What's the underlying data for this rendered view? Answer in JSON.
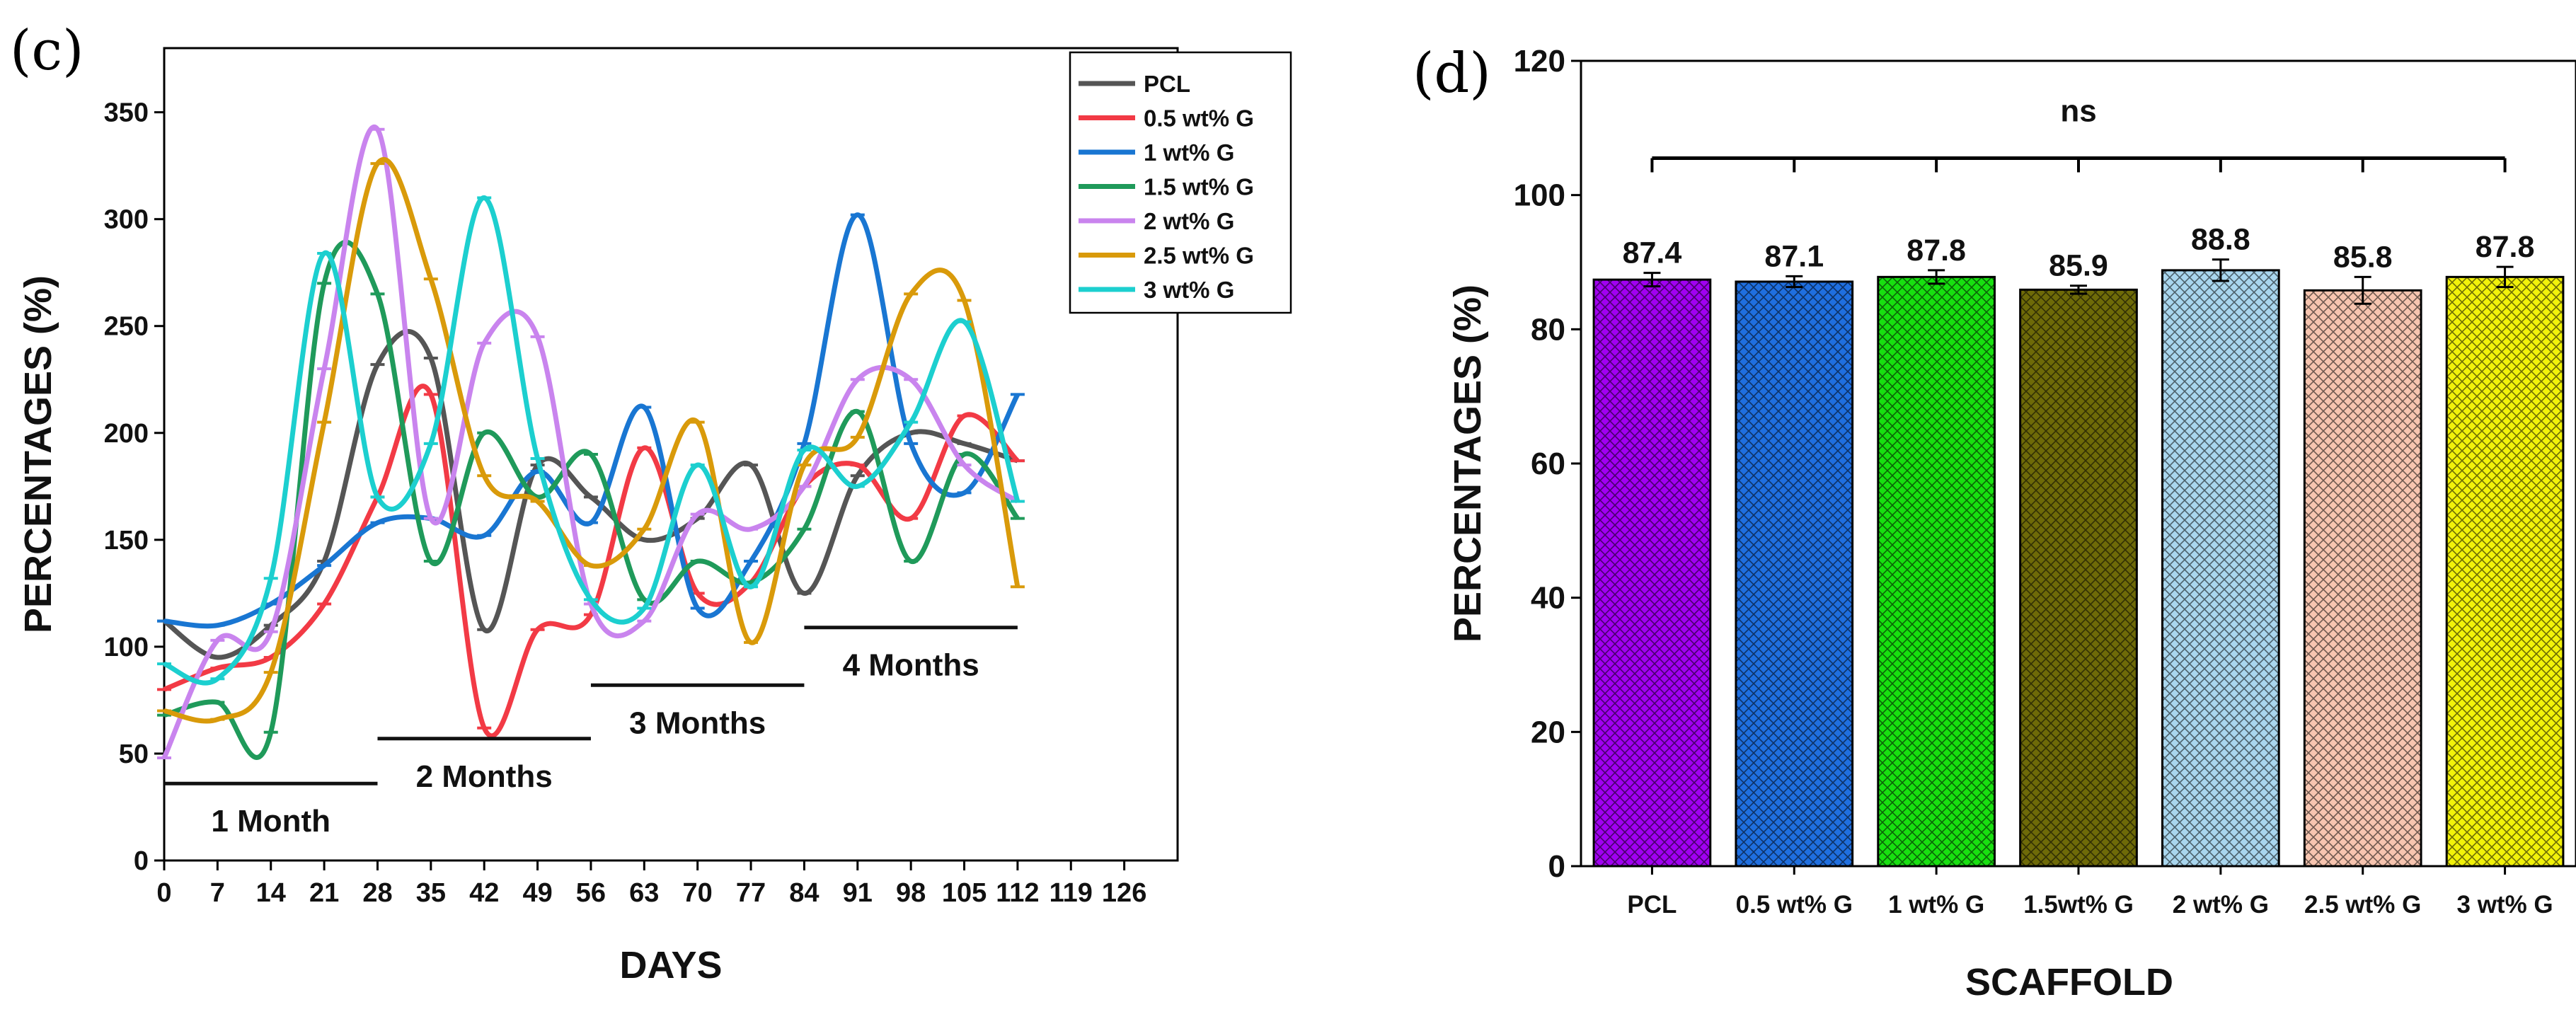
{
  "chart_data": [
    {
      "panel": "(c)",
      "type": "line",
      "xlabel": "DAYS",
      "ylabel": "PERCENTAGES (%)",
      "xlim": [
        0,
        133
      ],
      "ylim": [
        0,
        380
      ],
      "x_ticks": [
        0,
        7,
        14,
        21,
        28,
        35,
        42,
        49,
        56,
        63,
        70,
        77,
        84,
        91,
        98,
        105,
        112,
        119,
        126
      ],
      "y_ticks": [
        0,
        50,
        100,
        150,
        200,
        250,
        300,
        350
      ],
      "x": [
        0,
        7,
        14,
        21,
        28,
        35,
        42,
        49,
        56,
        63,
        70,
        77,
        84,
        91,
        98,
        105,
        112
      ],
      "series": [
        {
          "name": "PCL",
          "color": "#555555",
          "values": [
            112,
            95,
            110,
            140,
            232,
            235,
            108,
            185,
            170,
            150,
            160,
            185,
            125,
            180,
            200,
            195,
            187
          ]
        },
        {
          "name": "0.5 wt% G",
          "color": "#f23a45",
          "values": [
            80,
            90,
            95,
            120,
            170,
            218,
            62,
            108,
            115,
            193,
            125,
            130,
            175,
            185,
            160,
            208,
            187
          ]
        },
        {
          "name": "1 wt% G",
          "color": "#1976d2",
          "values": [
            112,
            110,
            120,
            138,
            158,
            160,
            152,
            182,
            158,
            212,
            118,
            140,
            195,
            302,
            195,
            172,
            218
          ]
        },
        {
          "name": "1.5 wt% G",
          "color": "#1f9a5a",
          "values": [
            68,
            74,
            60,
            270,
            265,
            140,
            200,
            170,
            190,
            122,
            140,
            130,
            155,
            210,
            140,
            190,
            160
          ]
        },
        {
          "name": "2 wt% G",
          "color": "#c984ee",
          "values": [
            48,
            103,
            107,
            230,
            342,
            160,
            242,
            245,
            120,
            112,
            162,
            155,
            175,
            225,
            225,
            185,
            168
          ]
        },
        {
          "name": "2.5 wt% G",
          "color": "#d99a0a",
          "values": [
            70,
            66,
            88,
            205,
            326,
            272,
            180,
            168,
            138,
            155,
            205,
            102,
            185,
            198,
            265,
            262,
            128
          ]
        },
        {
          "name": "3 wt% G",
          "color": "#1ccfcf",
          "values": [
            92,
            85,
            132,
            284,
            170,
            195,
            310,
            188,
            122,
            118,
            185,
            128,
            192,
            175,
            205,
            252,
            168
          ]
        }
      ],
      "annotations": [
        {
          "text": "1 Month",
          "from_day": 0,
          "to_day": 28,
          "y": 36
        },
        {
          "text": "2 Months",
          "from_day": 28,
          "to_day": 56,
          "y": 57
        },
        {
          "text": "3 Months",
          "from_day": 56,
          "to_day": 84,
          "y": 82
        },
        {
          "text": "4 Months",
          "from_day": 84,
          "to_day": 112,
          "y": 109
        }
      ],
      "legend_position": "top-right"
    },
    {
      "panel": "(d)",
      "type": "bar",
      "xlabel": "SCAFFOLD",
      "ylabel": "PERCENTAGES (%)",
      "ylim": [
        0,
        120
      ],
      "y_ticks": [
        0,
        20,
        40,
        60,
        80,
        100,
        120
      ],
      "categories": [
        "PCL",
        "0.5 wt% G",
        "1 wt% G",
        "1.5wt% G",
        "2 wt% G",
        "2.5 wt% G",
        "3 wt% G"
      ],
      "values": [
        87.4,
        87.1,
        87.8,
        85.9,
        88.8,
        85.8,
        87.8
      ],
      "value_labels": [
        "87.4",
        "87.1",
        "87.8",
        "85.9",
        "88.8",
        "85.8",
        "87.8"
      ],
      "errors": [
        1.0,
        0.8,
        1.0,
        0.6,
        1.6,
        2.0,
        1.5
      ],
      "colors": [
        "#a100f2",
        "#1f6fe0",
        "#18e010",
        "#6e6a08",
        "#a9d6ee",
        "#f7c5b0",
        "#f2f20a"
      ],
      "significance": {
        "text": "ns",
        "y": 105.5
      }
    }
  ]
}
